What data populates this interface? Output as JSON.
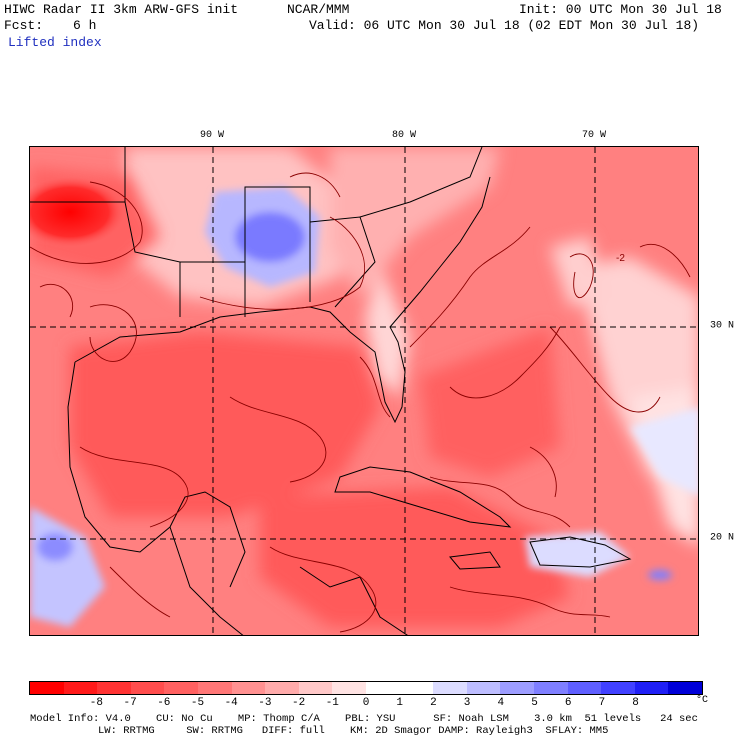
{
  "header": {
    "model": "HIWC Radar II 3km ARW-GFS init",
    "org": "NCAR/MMM",
    "init": "Init: 00 UTC Mon 30 Jul 18",
    "fcst_label": "Fcst:",
    "fcst_value": "6 h",
    "valid": "Valid: 06 UTC Mon 30 Jul 18 (02 EDT Mon 30 Jul 18)",
    "field": "Lifted index"
  },
  "map": {
    "lon_labels": [
      "90 W",
      "80 W",
      "70 W"
    ],
    "lat_labels": [
      "30 N",
      "20 N"
    ],
    "contour_label": "-2"
  },
  "colorbar": {
    "ticks": [
      "-8",
      "-7",
      "-6",
      "-5",
      "-4",
      "-3",
      "-2",
      "-1",
      "0",
      "1",
      "2",
      "3",
      "4",
      "5",
      "6",
      "7",
      "8"
    ],
    "unit": "°C",
    "colors": [
      "#ff0000",
      "#ff1a1a",
      "#ff3333",
      "#ff4d4d",
      "#ff6161",
      "#ff7777",
      "#ff9191",
      "#ffabab",
      "#ffc8c8",
      "#ffe3e3",
      "#ffffff",
      "#ffffff",
      "#dcdcff",
      "#bdbdff",
      "#9d9dff",
      "#7f7fff",
      "#5f5fff",
      "#4141ff",
      "#1f1ff5",
      "#0000d8"
    ]
  },
  "footer": {
    "line1": "Model Info: V4.0    CU: No Cu    MP: Thomp C/A    PBL: YSU      SF: Noah LSM    3.0 km  51 levels   24 sec",
    "line2": "LW: RRTMG     SW: RRTMG   DIFF: full    KM: 2D Smagor DAMP: Rayleigh3  SFLAY: MM5"
  }
}
